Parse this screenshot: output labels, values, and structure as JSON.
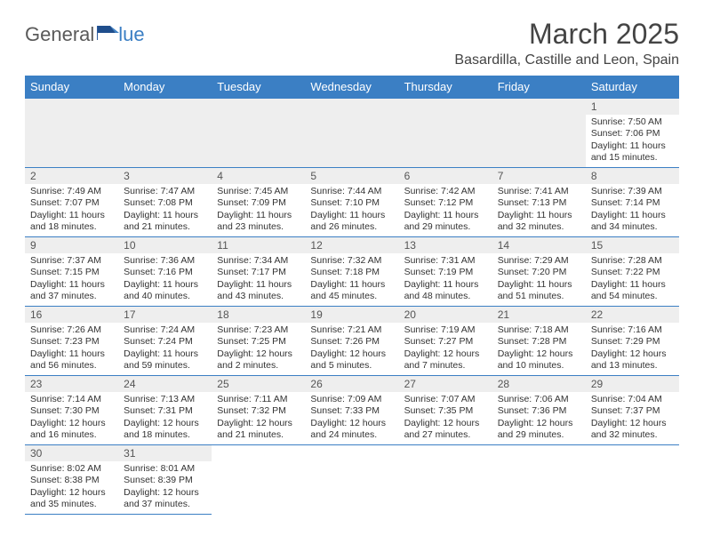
{
  "logo": {
    "part1": "General",
    "part2": "lue"
  },
  "title": "March 2025",
  "location": "Basardilla, Castille and Leon, Spain",
  "colors": {
    "header_bg": "#3b7fc4",
    "header_text": "#ffffff",
    "day_num_bg": "#eeeeee",
    "border": "#3b7fc4",
    "logo_gray": "#5a5a5a",
    "logo_blue": "#3b7fc4"
  },
  "weekdays": [
    "Sunday",
    "Monday",
    "Tuesday",
    "Wednesday",
    "Thursday",
    "Friday",
    "Saturday"
  ],
  "grid": [
    [
      {
        "blank": true
      },
      {
        "blank": true
      },
      {
        "blank": true
      },
      {
        "blank": true
      },
      {
        "blank": true
      },
      {
        "blank": true
      },
      {
        "num": "1",
        "sunrise": "Sunrise: 7:50 AM",
        "sunset": "Sunset: 7:06 PM",
        "daylight": "Daylight: 11 hours and 15 minutes."
      }
    ],
    [
      {
        "num": "2",
        "sunrise": "Sunrise: 7:49 AM",
        "sunset": "Sunset: 7:07 PM",
        "daylight": "Daylight: 11 hours and 18 minutes."
      },
      {
        "num": "3",
        "sunrise": "Sunrise: 7:47 AM",
        "sunset": "Sunset: 7:08 PM",
        "daylight": "Daylight: 11 hours and 21 minutes."
      },
      {
        "num": "4",
        "sunrise": "Sunrise: 7:45 AM",
        "sunset": "Sunset: 7:09 PM",
        "daylight": "Daylight: 11 hours and 23 minutes."
      },
      {
        "num": "5",
        "sunrise": "Sunrise: 7:44 AM",
        "sunset": "Sunset: 7:10 PM",
        "daylight": "Daylight: 11 hours and 26 minutes."
      },
      {
        "num": "6",
        "sunrise": "Sunrise: 7:42 AM",
        "sunset": "Sunset: 7:12 PM",
        "daylight": "Daylight: 11 hours and 29 minutes."
      },
      {
        "num": "7",
        "sunrise": "Sunrise: 7:41 AM",
        "sunset": "Sunset: 7:13 PM",
        "daylight": "Daylight: 11 hours and 32 minutes."
      },
      {
        "num": "8",
        "sunrise": "Sunrise: 7:39 AM",
        "sunset": "Sunset: 7:14 PM",
        "daylight": "Daylight: 11 hours and 34 minutes."
      }
    ],
    [
      {
        "num": "9",
        "sunrise": "Sunrise: 7:37 AM",
        "sunset": "Sunset: 7:15 PM",
        "daylight": "Daylight: 11 hours and 37 minutes."
      },
      {
        "num": "10",
        "sunrise": "Sunrise: 7:36 AM",
        "sunset": "Sunset: 7:16 PM",
        "daylight": "Daylight: 11 hours and 40 minutes."
      },
      {
        "num": "11",
        "sunrise": "Sunrise: 7:34 AM",
        "sunset": "Sunset: 7:17 PM",
        "daylight": "Daylight: 11 hours and 43 minutes."
      },
      {
        "num": "12",
        "sunrise": "Sunrise: 7:32 AM",
        "sunset": "Sunset: 7:18 PM",
        "daylight": "Daylight: 11 hours and 45 minutes."
      },
      {
        "num": "13",
        "sunrise": "Sunrise: 7:31 AM",
        "sunset": "Sunset: 7:19 PM",
        "daylight": "Daylight: 11 hours and 48 minutes."
      },
      {
        "num": "14",
        "sunrise": "Sunrise: 7:29 AM",
        "sunset": "Sunset: 7:20 PM",
        "daylight": "Daylight: 11 hours and 51 minutes."
      },
      {
        "num": "15",
        "sunrise": "Sunrise: 7:28 AM",
        "sunset": "Sunset: 7:22 PM",
        "daylight": "Daylight: 11 hours and 54 minutes."
      }
    ],
    [
      {
        "num": "16",
        "sunrise": "Sunrise: 7:26 AM",
        "sunset": "Sunset: 7:23 PM",
        "daylight": "Daylight: 11 hours and 56 minutes."
      },
      {
        "num": "17",
        "sunrise": "Sunrise: 7:24 AM",
        "sunset": "Sunset: 7:24 PM",
        "daylight": "Daylight: 11 hours and 59 minutes."
      },
      {
        "num": "18",
        "sunrise": "Sunrise: 7:23 AM",
        "sunset": "Sunset: 7:25 PM",
        "daylight": "Daylight: 12 hours and 2 minutes."
      },
      {
        "num": "19",
        "sunrise": "Sunrise: 7:21 AM",
        "sunset": "Sunset: 7:26 PM",
        "daylight": "Daylight: 12 hours and 5 minutes."
      },
      {
        "num": "20",
        "sunrise": "Sunrise: 7:19 AM",
        "sunset": "Sunset: 7:27 PM",
        "daylight": "Daylight: 12 hours and 7 minutes."
      },
      {
        "num": "21",
        "sunrise": "Sunrise: 7:18 AM",
        "sunset": "Sunset: 7:28 PM",
        "daylight": "Daylight: 12 hours and 10 minutes."
      },
      {
        "num": "22",
        "sunrise": "Sunrise: 7:16 AM",
        "sunset": "Sunset: 7:29 PM",
        "daylight": "Daylight: 12 hours and 13 minutes."
      }
    ],
    [
      {
        "num": "23",
        "sunrise": "Sunrise: 7:14 AM",
        "sunset": "Sunset: 7:30 PM",
        "daylight": "Daylight: 12 hours and 16 minutes."
      },
      {
        "num": "24",
        "sunrise": "Sunrise: 7:13 AM",
        "sunset": "Sunset: 7:31 PM",
        "daylight": "Daylight: 12 hours and 18 minutes."
      },
      {
        "num": "25",
        "sunrise": "Sunrise: 7:11 AM",
        "sunset": "Sunset: 7:32 PM",
        "daylight": "Daylight: 12 hours and 21 minutes."
      },
      {
        "num": "26",
        "sunrise": "Sunrise: 7:09 AM",
        "sunset": "Sunset: 7:33 PM",
        "daylight": "Daylight: 12 hours and 24 minutes."
      },
      {
        "num": "27",
        "sunrise": "Sunrise: 7:07 AM",
        "sunset": "Sunset: 7:35 PM",
        "daylight": "Daylight: 12 hours and 27 minutes."
      },
      {
        "num": "28",
        "sunrise": "Sunrise: 7:06 AM",
        "sunset": "Sunset: 7:36 PM",
        "daylight": "Daylight: 12 hours and 29 minutes."
      },
      {
        "num": "29",
        "sunrise": "Sunrise: 7:04 AM",
        "sunset": "Sunset: 7:37 PM",
        "daylight": "Daylight: 12 hours and 32 minutes."
      }
    ],
    [
      {
        "num": "30",
        "sunrise": "Sunrise: 8:02 AM",
        "sunset": "Sunset: 8:38 PM",
        "daylight": "Daylight: 12 hours and 35 minutes."
      },
      {
        "num": "31",
        "sunrise": "Sunrise: 8:01 AM",
        "sunset": "Sunset: 8:39 PM",
        "daylight": "Daylight: 12 hours and 37 minutes."
      },
      {
        "blank": true,
        "white": true
      },
      {
        "blank": true,
        "white": true
      },
      {
        "blank": true,
        "white": true
      },
      {
        "blank": true,
        "white": true
      },
      {
        "blank": true,
        "white": true
      }
    ]
  ]
}
